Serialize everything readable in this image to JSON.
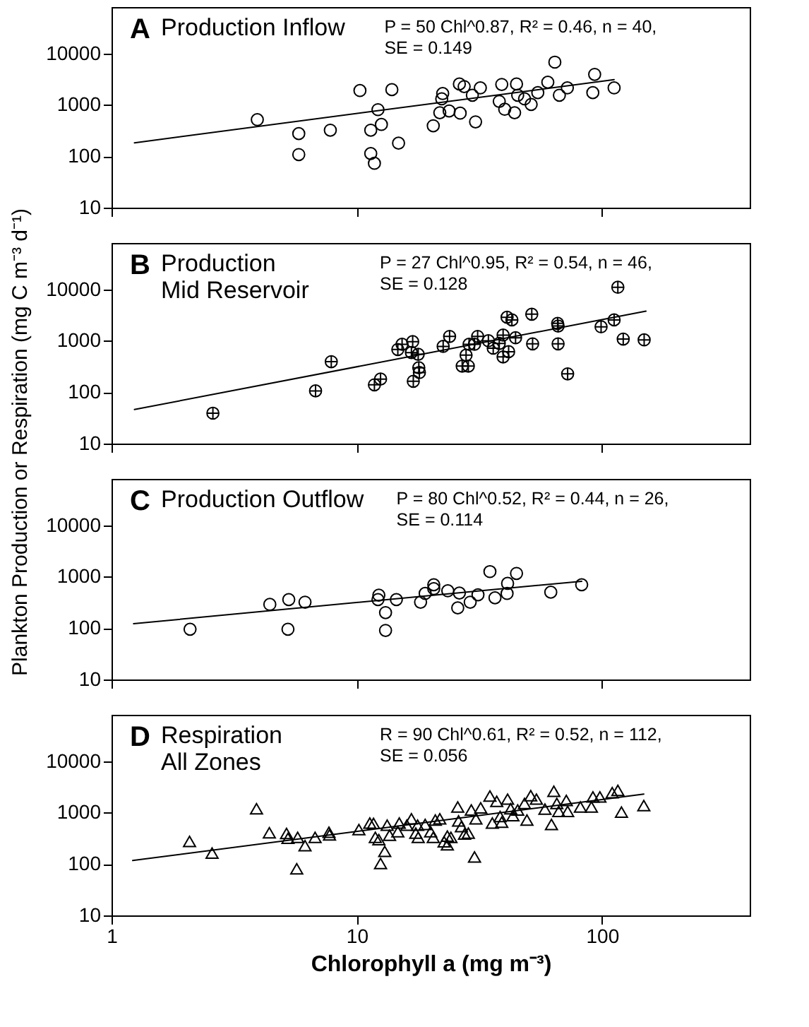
{
  "chart_data": [
    {
      "type": "scatter",
      "title": "A",
      "subtitle": "Production Inflow",
      "annotations": [
        "P = 50 Chl^0.87, R² = 0.46, n = 40,",
        "SE = 0.149"
      ],
      "xlim": [
        1,
        400
      ],
      "xticks": [
        1,
        10,
        100
      ],
      "ylim": [
        10,
        80000
      ],
      "yticks": [
        10,
        100,
        1000,
        10000
      ],
      "log": "xy",
      "grid": false,
      "tick_labels": "y",
      "series": [
        {
          "marker": "circle",
          "color": "#000000",
          "x": [
            3.93,
            5.8,
            5.8,
            7.8,
            10.3,
            11.4,
            12.2,
            12.6,
            11.4,
            11.8,
            13.9,
            14.8,
            20.5,
            21.8,
            22.2,
            22.4,
            23.8,
            26.2,
            27.4,
            26.4,
            29.6,
            31.9,
            30.5,
            39,
            38.1,
            40.1,
            44,
            44.8,
            45.3,
            48.3,
            51.4,
            54.7,
            60.1,
            64.2,
            67,
            72.2,
            91.7,
            93.3,
            112
          ],
          "values": [
            515,
            276,
            108,
            322,
            1900,
            322,
            807,
            416,
            113,
            73,
            1980,
            180,
            392,
            703,
            1310,
            1660,
            760,
            2550,
            2270,
            690,
            1540,
            2140,
            467,
            2500,
            1170,
            822,
            703,
            2550,
            1540,
            1310,
            1020,
            1730,
            2760,
            6780,
            1540,
            2140,
            1730,
            3920,
            2140
          ]
        },
        {
          "type": "line",
          "marker": "none",
          "line_style": "solid",
          "color": "#000000",
          "x": [
            1.24,
            112
          ],
          "values": [
            183,
            3100
          ]
        }
      ]
    },
    {
      "type": "scatter",
      "title": "B",
      "subtitle": "Production\nMid Reservoir",
      "annotations": [
        "P = 27 Chl^0.95, R² = 0.54, n = 46,",
        "SE = 0.128"
      ],
      "ylabel": "Plankton Production or Respiration (mg C m⁻³ d⁻¹)",
      "xlim": [
        1,
        400
      ],
      "xticks": [
        1,
        10,
        100
      ],
      "ylim": [
        10,
        80000
      ],
      "yticks": [
        10,
        100,
        1000,
        10000
      ],
      "log": "xy",
      "grid": false,
      "tick_labels": "y",
      "series": [
        {
          "marker": "cross",
          "color": "#000000",
          "x": [
            2.59,
            6.79,
            7.87,
            11.8,
            12.5,
            14.7,
            15.3,
            16.9,
            16.7,
            17.8,
            17.9,
            18.0,
            17.0,
            22.5,
            23.9,
            26.9,
            28.5,
            27.9,
            28.7,
            30.2,
            31.1,
            34.4,
            36,
            38.1,
            39.5,
            39.5,
            41,
            42.9,
            41.6,
            44.4,
            51.7,
            52.1,
            65.9,
            66.2,
            66.2,
            72.4,
            99.1,
            112,
            116,
            122,
            148.5
          ],
          "values": [
            39,
            106,
            392,
            139,
            180,
            677,
            855,
            962,
            590,
            546,
            298,
            241,
            163,
            777,
            1215,
            322,
            322,
            525,
            855,
            855,
            1215,
            1000,
            718,
            889,
            1288,
            486,
            2870,
            2550,
            614,
            1145,
            3290,
            873,
            2180,
            1940,
            873,
            227,
            1870,
            2550,
            11000,
            1080,
            1040
          ]
        },
        {
          "type": "line",
          "marker": "none",
          "line_style": "solid",
          "color": "#000000",
          "x": [
            1.24,
            151
          ],
          "values": [
            46,
            3770
          ]
        }
      ]
    },
    {
      "type": "scatter",
      "title": "C",
      "subtitle": "Production Outflow",
      "annotations": [
        "P = 80 Chl^0.52, R² = 0.44, n = 26,",
        "SE = 0.114"
      ],
      "xlim": [
        1,
        400
      ],
      "xticks": [
        1,
        10,
        100
      ],
      "ylim": [
        10,
        80000
      ],
      "yticks": [
        10,
        100,
        1000,
        10000
      ],
      "log": "xy",
      "grid": false,
      "tick_labels": "y",
      "series": [
        {
          "marker": "circle",
          "color": "#000000",
          "x": [
            2.09,
            4.42,
            5.28,
            5.24,
            6.15,
            12.2,
            12.3,
            13.1,
            13.1,
            14.5,
            18.2,
            19.0,
            20.6,
            20.6,
            23.5,
            25.8,
            26.2,
            29,
            31.2,
            34.9,
            36.6,
            41,
            41.2,
            44.8,
            61.8,
            82.6
          ],
          "values": [
            95,
            289,
            359,
            95,
            319,
            359,
            437,
            200,
            90,
            359,
            319,
            472,
            698,
            585,
            531,
            247,
            481,
            319,
            445,
            1257,
            388,
            472,
            740,
            1160,
            500,
            698
          ]
        },
        {
          "type": "line",
          "marker": "none",
          "line_style": "solid",
          "color": "#000000",
          "x": [
            1.23,
            82.6
          ],
          "values": [
            122,
            816
          ]
        }
      ]
    },
    {
      "type": "scatter",
      "title": "D",
      "subtitle": "Respiration\nAll Zones",
      "annotations": [
        "R = 90 Chl^0.61, R² = 0.52, n = 112,",
        "SE = 0.056"
      ],
      "xlabel": "Chlorophyll a (mg m⁻³)",
      "xlim": [
        1,
        400
      ],
      "xticks": [
        1,
        10,
        100
      ],
      "ylim": [
        10,
        80000
      ],
      "yticks": [
        10,
        100,
        1000,
        10000
      ],
      "log": "xy",
      "grid": false,
      "series": [
        {
          "marker": "triangle",
          "color": "#000000",
          "x": [
            2.08,
            2.57,
            3.9,
            4.4,
            5.17,
            5.24,
            5.69,
            5.74,
            6.15,
            6.76,
            7.7,
            7.74,
            10.2,
            11.3,
            11.7,
            11.9,
            12.3,
            12.5,
            13,
            13.3,
            13.6,
            14.7,
            14.9,
            16,
            16.7,
            17.4,
            17.7,
            17.8,
            19,
            20,
            20.5,
            20.9,
            21.8,
            22.7,
            23.4,
            23.4,
            24.2,
            25.8,
            26,
            26.7,
            27.5,
            28.5,
            29.3,
            30.2,
            30.6,
            32,
            34.9,
            35.7,
            37.2,
            38.4,
            39,
            41.2,
            42.4,
            43.3,
            45.3,
            48.3,
            49.4,
            51.2,
            54,
            58.5,
            62.2,
            63.6,
            65.4,
            66.6,
            71.5,
            72.4,
            81.6,
            90.5,
            91.8,
            98,
            110,
            116,
            120,
            148
          ],
          "values": [
            276,
            163,
            1190,
            407,
            393,
            316,
            81,
            329,
            227,
            329,
            416,
            370,
            467,
            626,
            618,
            329,
            298,
            102,
            176,
            568,
            362,
            424,
            626,
            568,
            760,
            400,
            568,
            329,
            590,
            424,
            329,
            718,
            760,
            270,
            349,
            236,
            329,
            1288,
            690,
            535,
            385,
            400,
            1125,
            137,
            760,
            1240,
            2100,
            626,
            1660,
            840,
            652,
            1830,
            1190,
            873,
            1125,
            1510,
            718,
            2140,
            1830,
            1170,
            590,
            2600,
            1510,
            1060,
            1730,
            1060,
            1288,
            1288,
            2020,
            2020,
            2450,
            2700,
            1020,
            1370
          ]
        },
        {
          "type": "line",
          "marker": "none",
          "line_style": "solid",
          "color": "#000000",
          "x": [
            1.22,
            148
          ],
          "values": [
            117,
            2300
          ]
        }
      ]
    }
  ]
}
